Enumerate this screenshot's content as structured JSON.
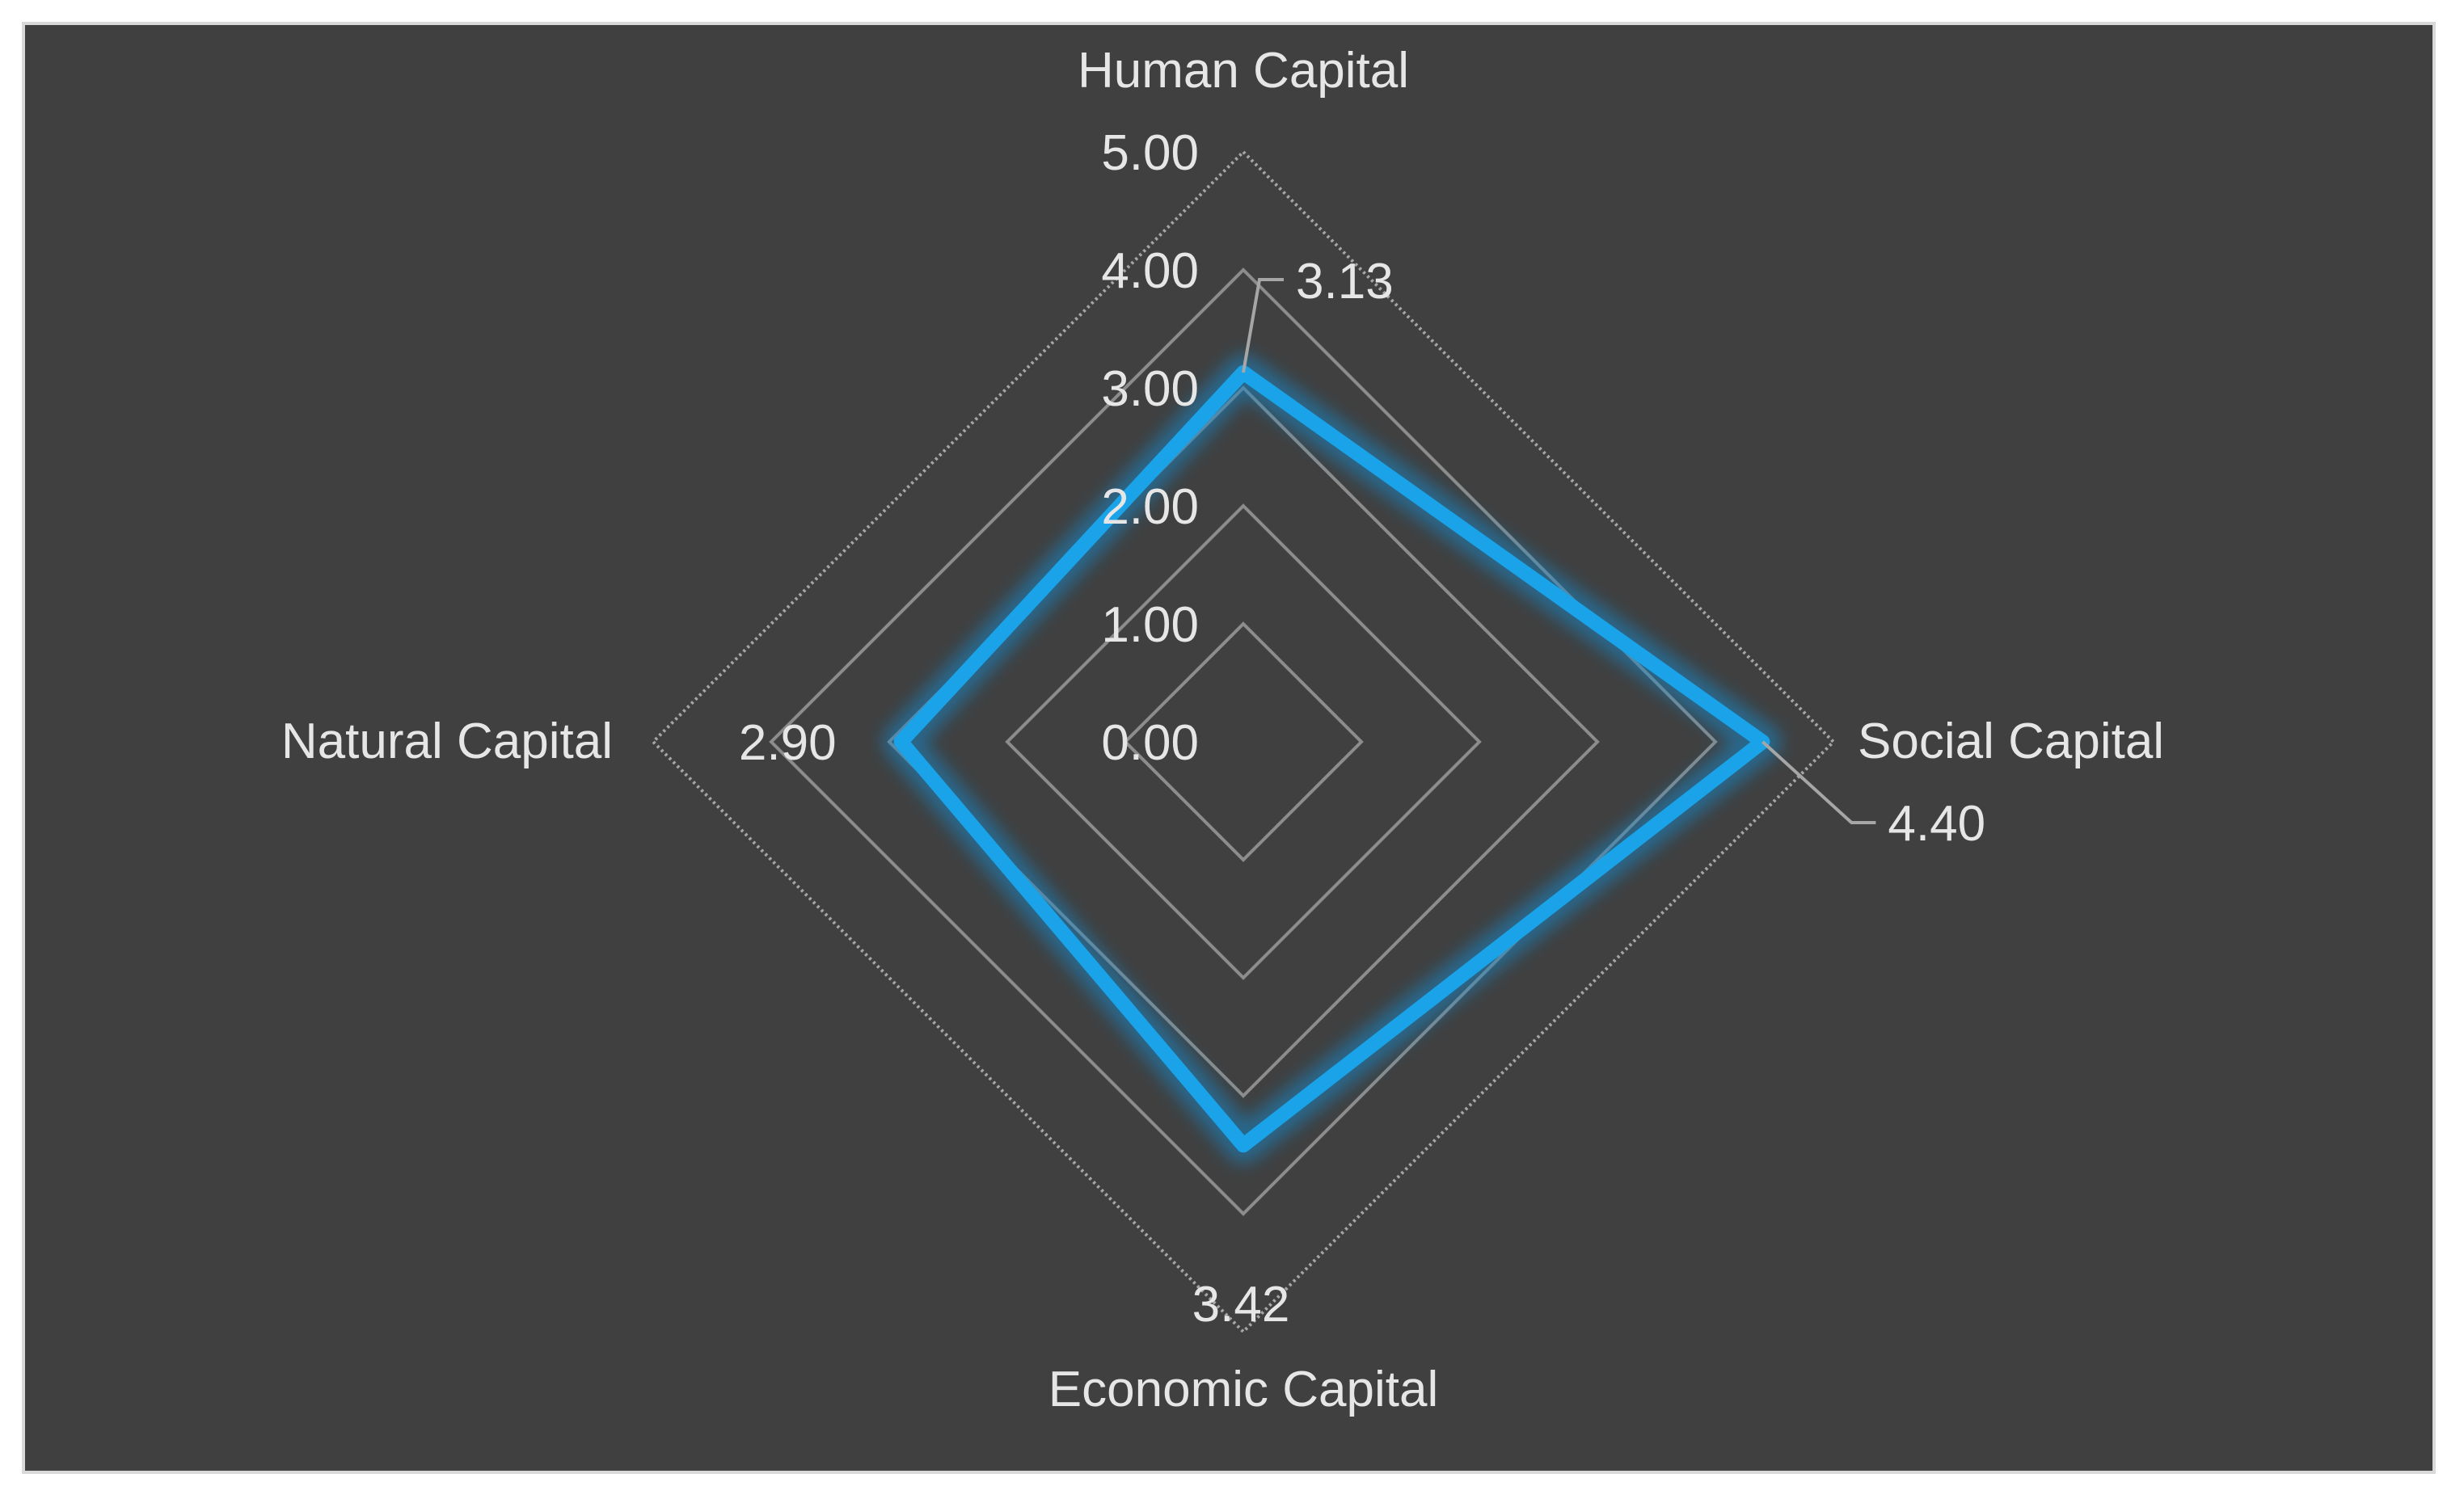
{
  "chart_data": {
    "type": "radar",
    "title": "",
    "categories": [
      "Human Capital",
      "Social Capital",
      "Economic Capital",
      "Natural Capital"
    ],
    "series": [
      {
        "values": [
          3.13,
          4.4,
          3.42,
          2.9
        ],
        "color": "#1aa3e8"
      }
    ],
    "data_labels": [
      "3.13",
      "4.40",
      "3.42",
      "2.90"
    ],
    "r_axis": {
      "min": 0,
      "max": 5,
      "step": 1,
      "tick_labels": [
        "0.00",
        "1.00",
        "2.00",
        "3.00",
        "4.00",
        "5.00"
      ]
    },
    "grid": true,
    "legend": "none",
    "colors": {
      "background": "#404040",
      "gridline": "#8c8c8c",
      "text": "#e6e6e6",
      "frame": "#d9d9d9"
    }
  }
}
